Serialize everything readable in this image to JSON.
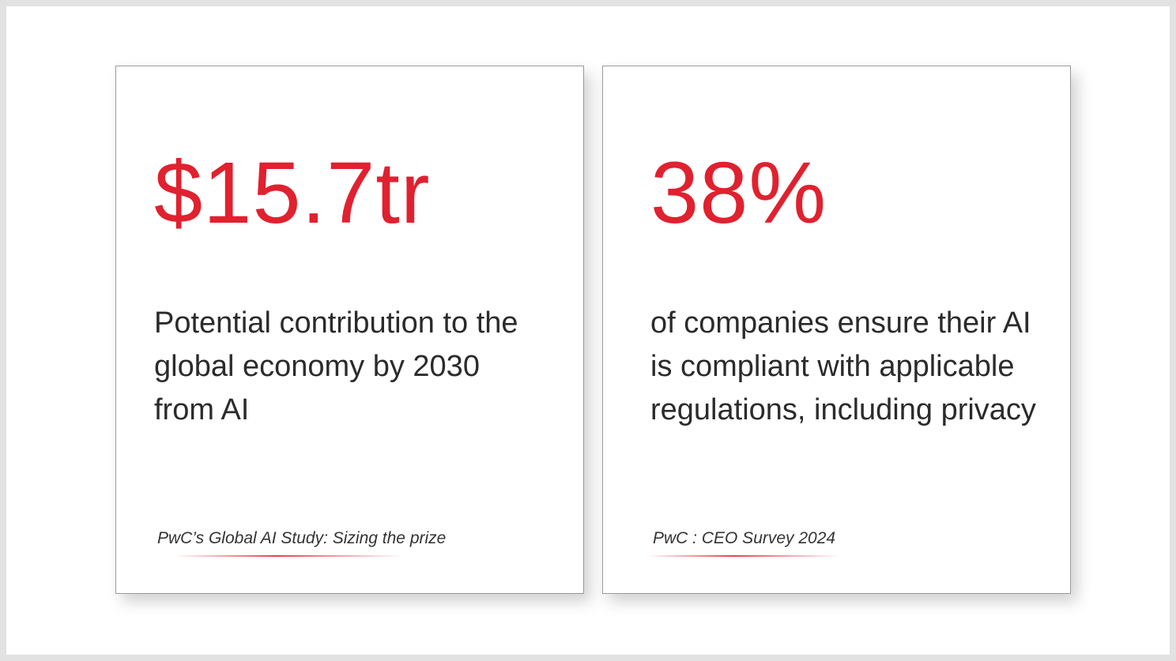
{
  "colors": {
    "accent": "#e0212f",
    "text": "#2b2b2b",
    "background": "#ffffff",
    "frame": "#e2e2e2"
  },
  "cards": [
    {
      "stat": "$15.7tr",
      "description": "Potential contribution to the global economy by 2030 from AI",
      "source": "PwC’s Global AI Study: Sizing the prize"
    },
    {
      "stat": "38%",
      "description": "of companies ensure their AI is compliant with applicable regulations, including privacy",
      "source": "PwC : CEO Survey 2024"
    }
  ]
}
